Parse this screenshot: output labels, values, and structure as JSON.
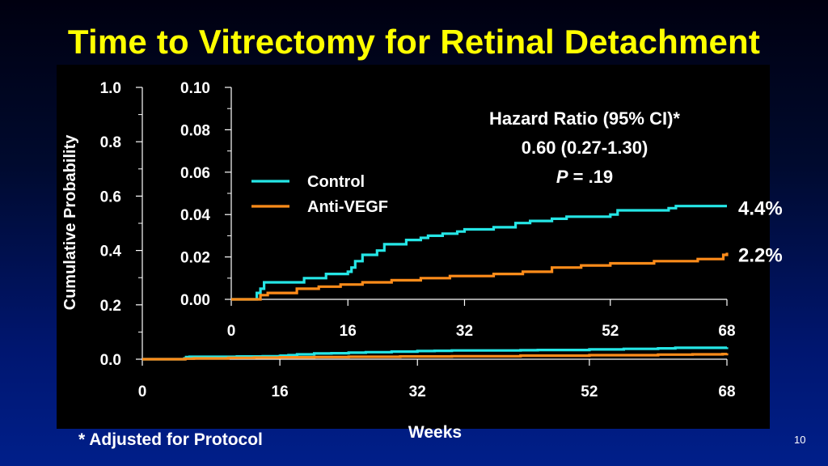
{
  "title": "Time to Vitrectomy for Retinal Detachment",
  "footnote": "* Adjusted for Protocol",
  "page_number": "10",
  "colors": {
    "control": "#25e6e6",
    "anti_vegf": "#ff8c1a",
    "title": "#ffff00",
    "text": "#ffffff"
  },
  "chart_data": [
    {
      "id": "main",
      "type": "line",
      "step": true,
      "xlabel": "Weeks",
      "ylabel": "Cumulative Probability",
      "xlim": [
        0,
        68
      ],
      "ylim": [
        0,
        1.0
      ],
      "x_ticks": [
        0,
        16,
        32,
        52,
        68
      ],
      "x_tick_labels": [
        "0",
        "16",
        "32",
        "52",
        "68"
      ],
      "y_ticks": [
        0.0,
        0.2,
        0.4,
        0.6,
        0.8,
        1.0
      ],
      "y_tick_labels": [
        "0.0",
        "0.2",
        "0.4",
        "0.6",
        "0.8",
        "1.0"
      ],
      "series": [
        {
          "name": "Control",
          "color": "#25e6e6",
          "x": [
            0,
            4.9,
            5.1,
            5.5,
            11,
            14,
            16,
            16.1,
            17,
            18,
            20,
            22,
            24,
            26,
            29,
            32,
            34,
            36,
            44,
            46,
            52,
            56,
            60,
            62,
            68
          ],
          "y": [
            0,
            0.003,
            0.008,
            0.009,
            0.01,
            0.011,
            0.012,
            0.013,
            0.015,
            0.018,
            0.021,
            0.022,
            0.024,
            0.026,
            0.028,
            0.03,
            0.031,
            0.032,
            0.033,
            0.034,
            0.036,
            0.038,
            0.04,
            0.042,
            0.044
          ]
        },
        {
          "name": "Anti-VEGF",
          "color": "#ff8c1a",
          "x": [
            0,
            5,
            6,
            10,
            13,
            16,
            20,
            24,
            30,
            36,
            44,
            52,
            60,
            64,
            67.5,
            68
          ],
          "y": [
            0,
            0.002,
            0.003,
            0.005,
            0.006,
            0.007,
            0.008,
            0.009,
            0.01,
            0.011,
            0.013,
            0.015,
            0.017,
            0.018,
            0.019,
            0.022
          ]
        }
      ]
    },
    {
      "id": "inset",
      "type": "line",
      "step": true,
      "xlim": [
        0,
        68
      ],
      "ylim": [
        0,
        0.1
      ],
      "x_ticks": [
        0,
        16,
        32,
        52,
        68
      ],
      "x_tick_labels": [
        "0",
        "16",
        "32",
        "52",
        "68"
      ],
      "y_ticks": [
        0.0,
        0.02,
        0.04,
        0.06,
        0.08,
        0.1
      ],
      "y_tick_labels": [
        "0.00",
        "0.02",
        "0.04",
        "0.06",
        "0.08",
        "0.10"
      ],
      "legend": [
        "Control",
        "Anti-VEGF"
      ],
      "legend_position": "top-center",
      "annotation": {
        "line1": "Hazard Ratio (95% CI)*",
        "line2": "0.60 (0.27-1.30)",
        "line3_italic": "P",
        "line3_rest": " = .19"
      },
      "end_labels": {
        "Control": "4.4%",
        "Anti-VEGF": "2.2%"
      },
      "series": [
        {
          "name": "Control",
          "color": "#25e6e6",
          "x": [
            0,
            3.5,
            4,
            4.5,
            10,
            13,
            16,
            16.5,
            17,
            18,
            20,
            21,
            24,
            26,
            27,
            29,
            31,
            32,
            36,
            39,
            41,
            44,
            46,
            52,
            53,
            60,
            61,
            68
          ],
          "y": [
            0,
            0.003,
            0.005,
            0.008,
            0.01,
            0.012,
            0.013,
            0.015,
            0.018,
            0.021,
            0.023,
            0.026,
            0.028,
            0.029,
            0.03,
            0.031,
            0.032,
            0.033,
            0.034,
            0.036,
            0.037,
            0.038,
            0.039,
            0.04,
            0.042,
            0.043,
            0.044,
            0.044
          ]
        },
        {
          "name": "Anti-VEGF",
          "color": "#ff8c1a",
          "x": [
            0,
            4,
            5,
            9,
            12,
            15,
            18,
            22,
            26,
            30,
            36,
            40,
            44,
            48,
            52,
            58,
            64,
            67.5,
            68
          ],
          "y": [
            0,
            0.002,
            0.003,
            0.005,
            0.006,
            0.007,
            0.008,
            0.009,
            0.01,
            0.011,
            0.012,
            0.013,
            0.015,
            0.016,
            0.017,
            0.018,
            0.019,
            0.021,
            0.022
          ]
        }
      ]
    }
  ]
}
